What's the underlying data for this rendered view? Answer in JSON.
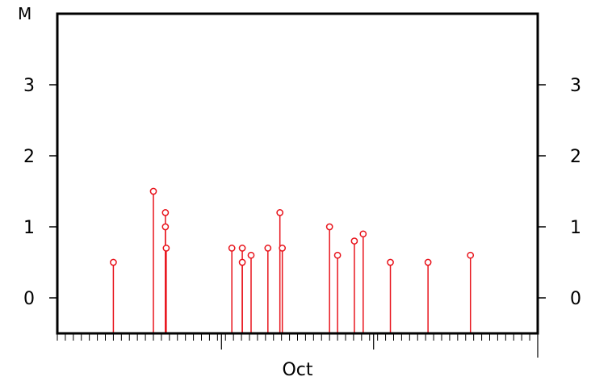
{
  "chart_data": {
    "type": "stem",
    "ylabel": "M",
    "xlabel": "",
    "ylim": [
      -0.5,
      4.0
    ],
    "y_ticks": [
      0,
      1,
      2,
      3
    ],
    "y_tick_labels": [
      "0",
      "1",
      "2",
      "3"
    ],
    "x_major_tick_labels": [
      "Oct"
    ],
    "grid": false,
    "legend": "none",
    "x_range": [
      0,
      60
    ],
    "x_major_ticks": [
      20.5,
      39.5
    ],
    "x_minor_tick_count": 60,
    "colors": {
      "stem": "#e8141c",
      "frame": "#000000"
    },
    "points": [
      {
        "x": 7.0,
        "y": 0.5
      },
      {
        "x": 12.0,
        "y": 1.5
      },
      {
        "x": 13.5,
        "y": 1.2
      },
      {
        "x": 13.5,
        "y": 1.0
      },
      {
        "x": 13.6,
        "y": 0.7
      },
      {
        "x": 21.8,
        "y": 0.7
      },
      {
        "x": 23.1,
        "y": 0.7
      },
      {
        "x": 23.1,
        "y": 0.5
      },
      {
        "x": 24.2,
        "y": 0.6
      },
      {
        "x": 26.3,
        "y": 0.7
      },
      {
        "x": 27.8,
        "y": 1.2
      },
      {
        "x": 28.1,
        "y": 0.7
      },
      {
        "x": 34.0,
        "y": 1.0
      },
      {
        "x": 35.0,
        "y": 0.6
      },
      {
        "x": 37.1,
        "y": 0.8
      },
      {
        "x": 38.2,
        "y": 0.9
      },
      {
        "x": 41.6,
        "y": 0.5
      },
      {
        "x": 46.3,
        "y": 0.5
      },
      {
        "x": 51.6,
        "y": 0.6
      }
    ]
  }
}
